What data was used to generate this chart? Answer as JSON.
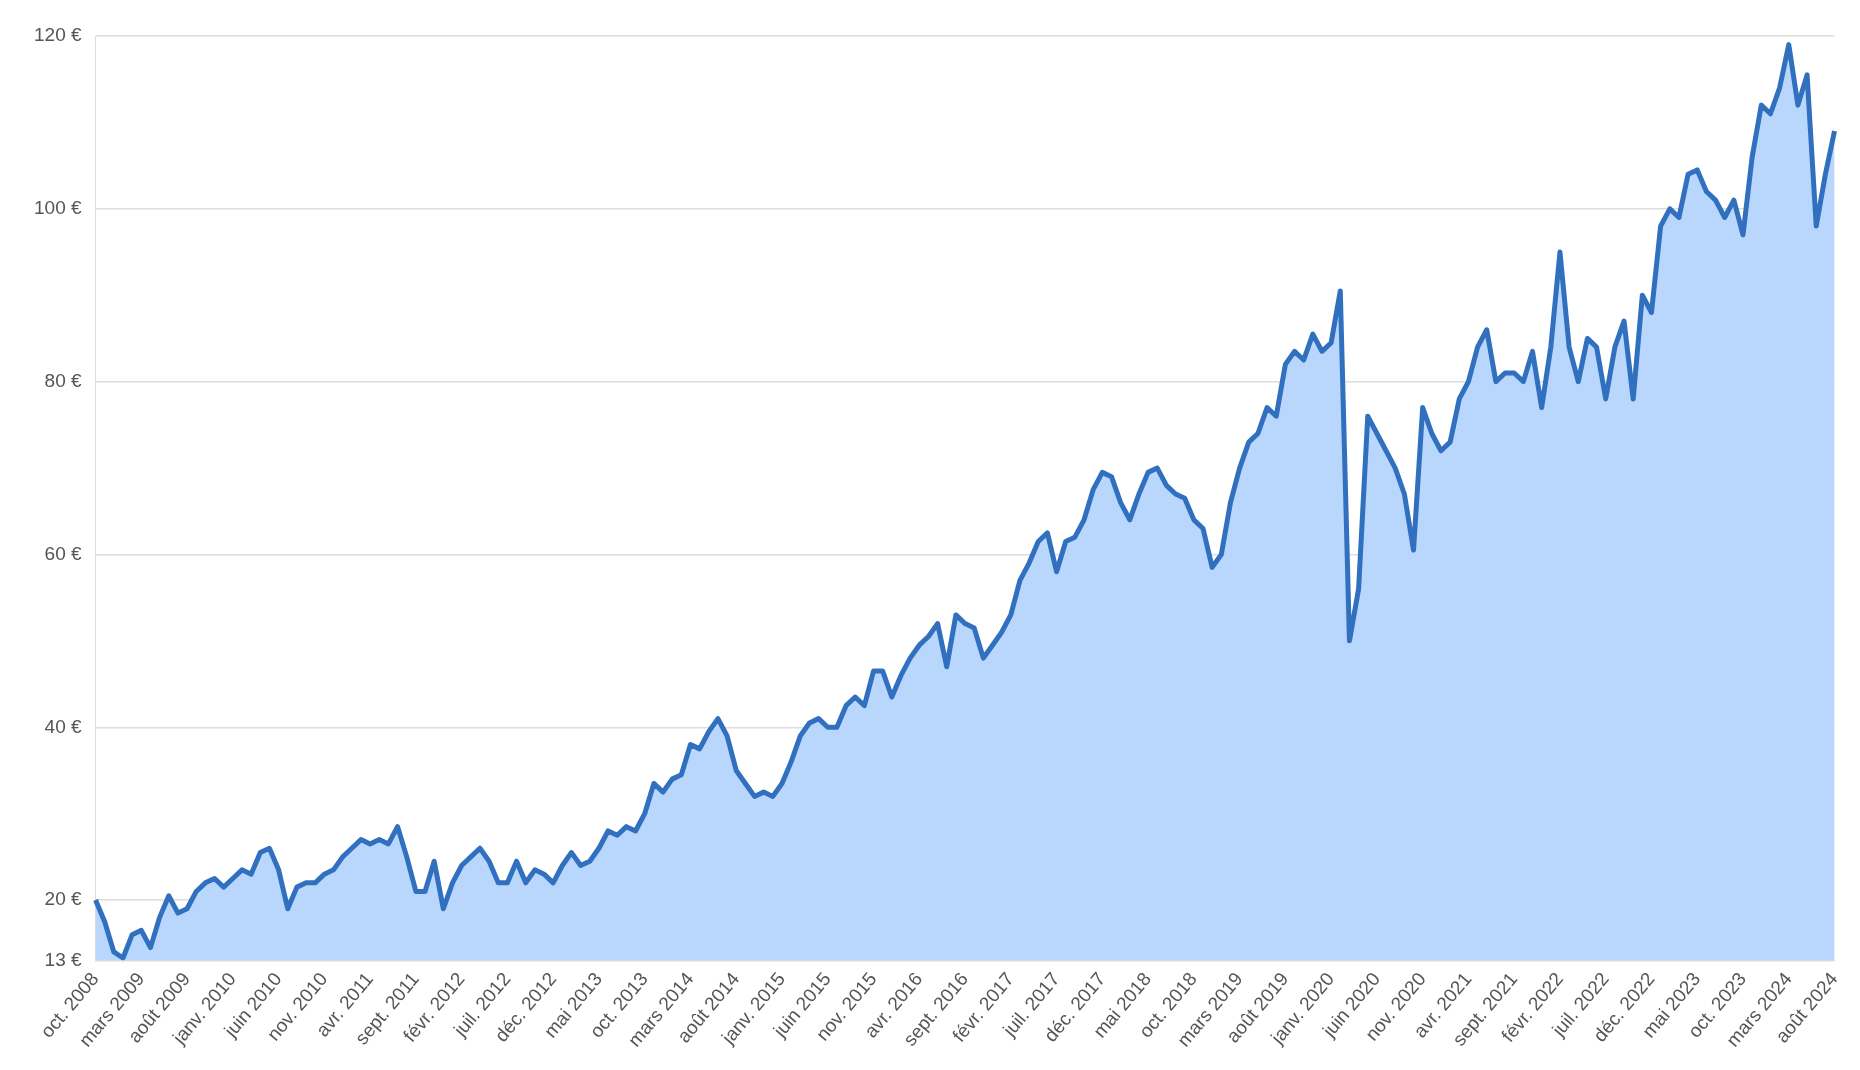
{
  "chart_data": {
    "type": "area",
    "categories": [
      "oct. 2008",
      null,
      null,
      null,
      null,
      "mars 2009",
      null,
      null,
      null,
      null,
      "août 2009",
      null,
      null,
      null,
      null,
      "janv. 2010",
      null,
      null,
      null,
      null,
      "juin 2010",
      null,
      null,
      null,
      null,
      "nov. 2010",
      null,
      null,
      null,
      null,
      "avr. 2011",
      null,
      null,
      null,
      null,
      "sept. 2011",
      null,
      null,
      null,
      null,
      "févr. 2012",
      null,
      null,
      null,
      null,
      "juil. 2012",
      null,
      null,
      null,
      null,
      "déc. 2012",
      null,
      null,
      null,
      null,
      "mai 2013",
      null,
      null,
      null,
      null,
      "oct. 2013",
      null,
      null,
      null,
      null,
      "mars 2014",
      null,
      null,
      null,
      null,
      "août 2014",
      null,
      null,
      null,
      null,
      "janv. 2015",
      null,
      null,
      null,
      null,
      "juin 2015",
      null,
      null,
      null,
      null,
      "nov. 2015",
      null,
      null,
      null,
      null,
      "avr. 2016",
      null,
      null,
      null,
      null,
      "sept. 2016",
      null,
      null,
      null,
      null,
      "févr. 2017",
      null,
      null,
      null,
      null,
      "juil. 2017",
      null,
      null,
      null,
      null,
      "déc. 2017",
      null,
      null,
      null,
      null,
      "mai 2018",
      null,
      null,
      null,
      null,
      "oct. 2018",
      null,
      null,
      null,
      null,
      "mars 2019",
      null,
      null,
      null,
      null,
      "août 2019",
      null,
      null,
      null,
      null,
      "janv. 2020",
      null,
      null,
      null,
      null,
      "juin 2020",
      null,
      null,
      null,
      null,
      "nov. 2020",
      null,
      null,
      null,
      null,
      "avr. 2021",
      null,
      null,
      null,
      null,
      "sept. 2021",
      null,
      null,
      null,
      null,
      "févr. 2022",
      null,
      null,
      null,
      null,
      "juil. 2022",
      null,
      null,
      null,
      null,
      "déc. 2022",
      null,
      null,
      null,
      null,
      "mai 2023",
      null,
      null,
      null,
      null,
      "oct. 2023",
      null,
      null,
      null,
      null,
      "mars 2024",
      null,
      null,
      null,
      null,
      "août 2024"
    ],
    "series": [
      {
        "color": "#3170bf",
        "values": [
          20,
          17.5,
          14,
          13.3,
          16,
          16.5,
          14.5,
          18,
          20.5,
          18.5,
          19,
          21,
          22,
          22.5,
          21.5,
          22.5,
          23.5,
          23,
          25.5,
          26,
          23.5,
          19,
          21.5,
          22,
          22,
          23,
          23.5,
          25,
          26,
          27,
          26.5,
          27,
          26.5,
          28.5,
          25,
          21,
          21,
          24.5,
          19,
          22,
          24,
          25,
          26,
          24.5,
          22,
          22,
          24.5,
          22,
          23.5,
          23,
          22,
          24,
          25.5,
          24,
          24.5,
          26,
          28,
          27.5,
          28.5,
          28,
          30,
          33.5,
          32.5,
          34,
          34.5,
          38,
          37.5,
          39.5,
          41,
          39,
          35,
          33.5,
          32,
          32.5,
          32,
          33.5,
          36,
          39,
          40.5,
          41,
          40,
          40,
          42.5,
          43.5,
          42.5,
          46.5,
          46.5,
          43.5,
          46,
          48,
          49.5,
          50.5,
          52,
          47,
          53,
          52,
          51.5,
          48,
          49.5,
          51,
          53,
          57,
          59,
          61.5,
          62.5,
          58,
          61.5,
          62,
          64,
          67.5,
          69.5,
          69,
          66,
          64,
          67,
          69.5,
          70,
          68,
          67,
          66.5,
          64,
          63,
          58.5,
          60,
          66,
          70,
          73,
          74,
          77,
          76,
          82,
          83.5,
          82.5,
          85.5,
          83.5,
          84.5,
          90.5,
          50,
          56,
          76,
          74,
          72,
          70,
          67,
          60.5,
          77,
          74,
          72,
          73,
          78,
          80,
          84,
          86,
          80,
          81,
          81,
          80,
          83.5,
          77,
          84,
          95,
          84,
          80,
          85,
          84,
          78,
          84,
          87,
          78,
          90,
          88,
          98,
          100,
          99,
          104,
          104.5,
          102,
          101,
          99,
          101,
          97,
          106,
          112,
          111,
          114,
          119,
          112,
          115.5,
          98,
          104,
          109
        ]
      }
    ],
    "ylim": [
      13,
      120
    ],
    "yticks": [
      {
        "value": 13,
        "label": "13 €"
      },
      {
        "value": 20,
        "label": "20 €"
      },
      {
        "value": 40,
        "label": "40 €"
      },
      {
        "value": 60,
        "label": "60 €"
      },
      {
        "value": 80,
        "label": "80 €"
      },
      {
        "value": 100,
        "label": "100 €"
      },
      {
        "value": 120,
        "label": "120 €"
      }
    ],
    "grid": "y"
  }
}
